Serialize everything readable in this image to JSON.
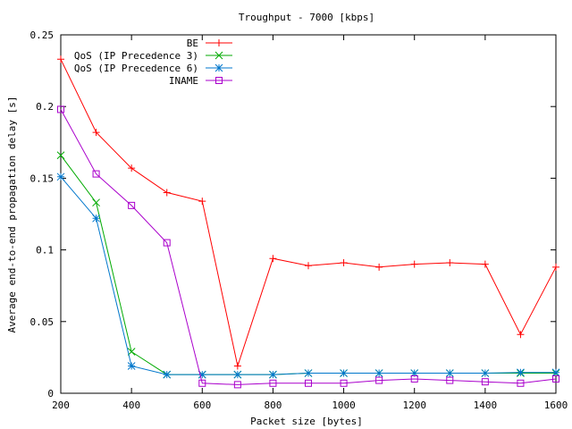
{
  "chart_data": {
    "type": "line",
    "title": "Troughput - 7000 [kbps]",
    "xlabel": "Packet size [bytes]",
    "ylabel": "Average end-to-end propagation delay [s]",
    "xlim": [
      200,
      1600
    ],
    "ylim": [
      0,
      0.25
    ],
    "xticks": [
      200,
      400,
      600,
      800,
      1000,
      1200,
      1400,
      1600
    ],
    "yticks": [
      0,
      0.05,
      0.1,
      0.15,
      0.2,
      0.25
    ],
    "xtick_labels": [
      "200",
      "400",
      "600",
      "800",
      "1000",
      "1200",
      "1400",
      "1600"
    ],
    "ytick_labels": [
      "0",
      "0.05",
      "0.1",
      "0.15",
      "0.2",
      "0.25"
    ],
    "grid": false,
    "legend_position": "top-left",
    "series": [
      {
        "name": "BE",
        "color": "#ff0000",
        "marker": "plus",
        "x": [
          200,
          300,
          400,
          500,
          600,
          700,
          800,
          900,
          1000,
          1100,
          1200,
          1300,
          1400,
          1500,
          1600
        ],
        "y": [
          0.233,
          0.182,
          0.157,
          0.14,
          0.134,
          0.019,
          0.094,
          0.089,
          0.091,
          0.088,
          0.09,
          0.091,
          0.09,
          0.041,
          0.088
        ]
      },
      {
        "name": "QoS (IP Precedence 3)",
        "color": "#00aa00",
        "marker": "cross",
        "x": [
          200,
          300,
          400,
          500,
          600,
          700,
          800,
          900,
          1000,
          1100,
          1200,
          1300,
          1400,
          1500,
          1600
        ],
        "y": [
          0.166,
          0.133,
          0.029,
          0.013,
          0.013,
          0.013,
          0.013,
          0.014,
          0.014,
          0.014,
          0.014,
          0.014,
          0.014,
          0.014,
          0.014
        ]
      },
      {
        "name": "QoS (IP Precedence 6)",
        "color": "#0077cc",
        "marker": "star",
        "x": [
          200,
          300,
          400,
          500,
          600,
          700,
          800,
          900,
          1000,
          1100,
          1200,
          1300,
          1400,
          1500,
          1600
        ],
        "y": [
          0.151,
          0.122,
          0.019,
          0.013,
          0.013,
          0.013,
          0.013,
          0.014,
          0.014,
          0.014,
          0.014,
          0.014,
          0.014,
          0.0145,
          0.0145
        ]
      },
      {
        "name": "INAME",
        "color": "#aa00cc",
        "marker": "square",
        "x": [
          200,
          300,
          400,
          500,
          600,
          700,
          800,
          900,
          1000,
          1100,
          1200,
          1300,
          1400,
          1500,
          1600
        ],
        "y": [
          0.198,
          0.153,
          0.131,
          0.105,
          0.007,
          0.006,
          0.007,
          0.007,
          0.007,
          0.009,
          0.01,
          0.009,
          0.008,
          0.007,
          0.01
        ]
      }
    ]
  }
}
